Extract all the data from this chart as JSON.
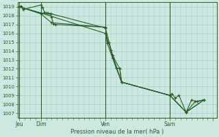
{
  "background_color": "#cce8e0",
  "grid_color": "#99ccc2",
  "line_color": "#2d5a27",
  "xlabel": "Pression niveau de la mer( hPa )",
  "ylim": [
    1006.5,
    1019.5
  ],
  "yticks": [
    1007,
    1008,
    1009,
    1010,
    1011,
    1012,
    1013,
    1014,
    1015,
    1016,
    1017,
    1018,
    1019
  ],
  "xlim": [
    -2,
    220
  ],
  "day_positions": [
    0,
    24,
    96,
    168,
    216
  ],
  "day_labels": [
    "Jeu",
    "Dim",
    "Ven",
    "Sam",
    ""
  ],
  "series": [
    {
      "x": [
        0,
        2,
        4,
        24,
        26,
        28,
        30,
        32,
        34,
        36,
        38,
        40,
        96,
        98,
        100,
        102,
        104,
        108,
        112,
        114,
        168,
        170,
        174,
        178,
        186,
        192,
        198,
        206
      ],
      "y": [
        1019.0,
        1019.1,
        1018.7,
        1019.2,
        1018.9,
        1018.4,
        1018.3,
        1018.3,
        1018.2,
        1017.8,
        1017.1,
        1017.0,
        1016.7,
        1014.9,
        1015.0,
        1014.1,
        1013.3,
        1012.1,
        1012.0,
        1010.5,
        1009.0,
        1009.2,
        1008.7,
        1009.0,
        1007.1,
        1008.5,
        1008.3,
        1008.5
      ]
    },
    {
      "x": [
        0,
        24,
        36,
        96,
        98,
        104,
        108,
        114,
        168,
        186,
        196,
        206
      ],
      "y": [
        1019.0,
        1018.2,
        1017.2,
        1016.7,
        1014.9,
        1013.2,
        1012.1,
        1010.5,
        1009.0,
        1007.1,
        1008.3,
        1008.5
      ]
    },
    {
      "x": [
        0,
        24,
        36,
        96,
        104,
        112,
        114,
        168,
        186,
        206
      ],
      "y": [
        1019.0,
        1018.3,
        1018.2,
        1016.6,
        1013.5,
        1012.0,
        1010.5,
        1009.0,
        1007.1,
        1008.5
      ]
    },
    {
      "x": [
        0,
        24,
        96,
        114,
        168,
        186,
        206
      ],
      "y": [
        1019.0,
        1018.3,
        1016.0,
        1010.5,
        1009.0,
        1007.1,
        1008.5
      ]
    }
  ]
}
